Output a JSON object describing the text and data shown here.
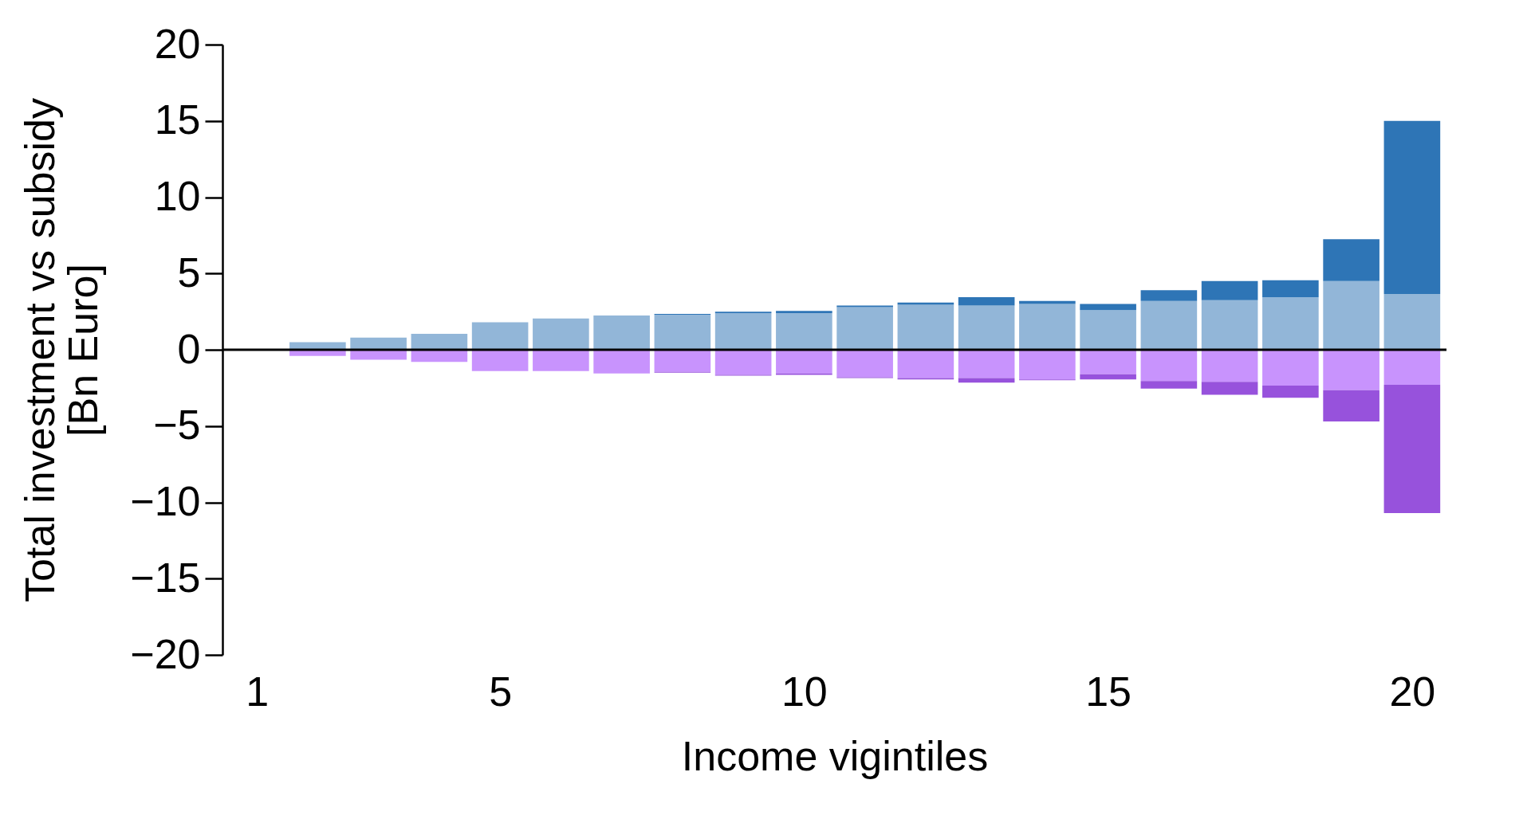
{
  "chart_data": {
    "type": "bar",
    "stacked": true,
    "xlabel": "Income vigintiles",
    "ylabel": "Total investment vs subsidy\n[Bn Euro]",
    "x": [
      1,
      2,
      3,
      4,
      5,
      6,
      7,
      8,
      9,
      10,
      11,
      12,
      13,
      14,
      15,
      16,
      17,
      18,
      19,
      20
    ],
    "xlim": [
      0.5,
      20.5
    ],
    "xticks": [
      1,
      5,
      10,
      15,
      20
    ],
    "series": [
      {
        "color": "#92b6d8",
        "values": [
          null,
          0.5,
          0.8,
          1.05,
          1.8,
          2.05,
          2.25,
          2.3,
          2.4,
          2.4,
          2.8,
          2.95,
          2.9,
          3.0,
          2.6,
          3.2,
          3.25,
          3.45,
          4.5,
          3.65
        ]
      },
      {
        "color": "#2e75b6",
        "values": [
          0,
          0,
          0,
          0,
          0,
          0,
          0,
          0.05,
          0.1,
          0.15,
          0.1,
          0.15,
          0.55,
          0.2,
          0.4,
          0.7,
          1.25,
          1.1,
          2.75,
          11.35
        ]
      },
      {
        "color": "#c893fd",
        "values": [
          null,
          -0.4,
          -0.65,
          -0.8,
          -1.4,
          -1.4,
          -1.55,
          -1.45,
          -1.65,
          -1.55,
          -1.8,
          -1.85,
          -1.85,
          -1.95,
          -1.6,
          -2.05,
          -2.1,
          -2.35,
          -2.65,
          -2.3
        ]
      },
      {
        "color": "#9752dc",
        "values": [
          0,
          0,
          0,
          0,
          0,
          0,
          0,
          -0.05,
          -0.05,
          -0.1,
          -0.05,
          -0.1,
          -0.3,
          -0.05,
          -0.35,
          -0.5,
          -0.85,
          -0.8,
          -2.05,
          -8.4
        ]
      }
    ],
    "ylim": [
      -20,
      20
    ],
    "yticks": [
      -20,
      -15,
      -10,
      -5,
      0,
      5,
      10,
      15,
      20
    ],
    "ref_lines": [
      {
        "axis": "y",
        "value": 0,
        "color": "#000000"
      }
    ]
  }
}
